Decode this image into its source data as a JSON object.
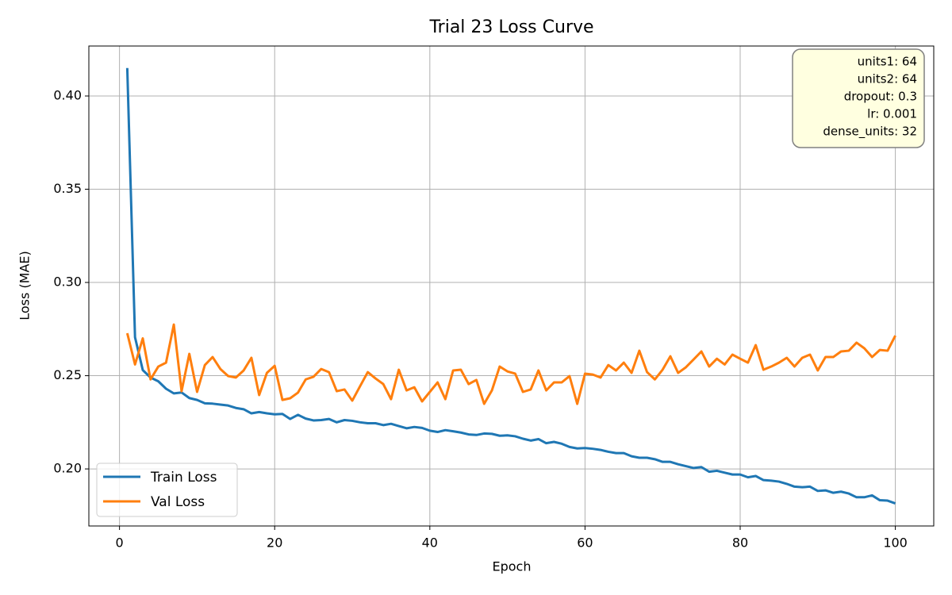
{
  "chart_data": {
    "type": "line",
    "title": "Trial 23 Loss Curve",
    "xlabel": "Epoch",
    "ylabel": "Loss (MAE)",
    "x": [
      1,
      2,
      3,
      4,
      5,
      6,
      7,
      8,
      9,
      10,
      11,
      12,
      13,
      14,
      15,
      16,
      17,
      18,
      19,
      20,
      21,
      22,
      23,
      24,
      25,
      26,
      27,
      28,
      29,
      30,
      31,
      32,
      33,
      34,
      35,
      36,
      37,
      38,
      39,
      40,
      41,
      42,
      43,
      44,
      45,
      46,
      47,
      48,
      49,
      50,
      51,
      52,
      53,
      54,
      55,
      56,
      57,
      58,
      59,
      60,
      61,
      62,
      63,
      64,
      65,
      66,
      67,
      68,
      69,
      70,
      71,
      72,
      73,
      74,
      75,
      76,
      77,
      78,
      79,
      80,
      81,
      82,
      83,
      84,
      85,
      86,
      87,
      88,
      89,
      90,
      91,
      92,
      93,
      94,
      95,
      96,
      97,
      98,
      99,
      100
    ],
    "series": [
      {
        "name": "Train Loss",
        "color": "#1f77b4",
        "values": [
          0.415,
          0.2706,
          0.253,
          0.249,
          0.247,
          0.243,
          0.2405,
          0.241,
          0.238,
          0.237,
          0.2352,
          0.235,
          0.2345,
          0.234,
          0.2327,
          0.232,
          0.2298,
          0.2305,
          0.2298,
          0.2293,
          0.2295,
          0.2268,
          0.229,
          0.227,
          0.226,
          0.2262,
          0.2268,
          0.225,
          0.2262,
          0.2258,
          0.225,
          0.2245,
          0.2245,
          0.2235,
          0.2242,
          0.223,
          0.2218,
          0.2225,
          0.222,
          0.2205,
          0.2198,
          0.2208,
          0.2202,
          0.2195,
          0.2185,
          0.2182,
          0.219,
          0.2188,
          0.2178,
          0.218,
          0.2175,
          0.2162,
          0.2152,
          0.216,
          0.2138,
          0.2145,
          0.2135,
          0.2118,
          0.211,
          0.2112,
          0.2108,
          0.2102,
          0.2092,
          0.2085,
          0.2085,
          0.2068,
          0.206,
          0.206,
          0.2052,
          0.2038,
          0.2038,
          0.2025,
          0.2015,
          0.2005,
          0.201,
          0.1985,
          0.199,
          0.198,
          0.197,
          0.197,
          0.1955,
          0.1962,
          0.194,
          0.1937,
          0.1932,
          0.192,
          0.1905,
          0.1902,
          0.1905,
          0.1882,
          0.1885,
          0.1872,
          0.1878,
          0.1868,
          0.1848,
          0.1848,
          0.1858,
          0.1832,
          0.183,
          0.1815
        ]
      },
      {
        "name": "Val Loss",
        "color": "#ff7f0e",
        "values": [
          0.2728,
          0.256,
          0.27,
          0.248,
          0.2549,
          0.257,
          0.2774,
          0.2417,
          0.2617,
          0.2413,
          0.2557,
          0.26,
          0.2536,
          0.2498,
          0.249,
          0.2528,
          0.2596,
          0.2396,
          0.2515,
          0.2553,
          0.237,
          0.2379,
          0.2409,
          0.248,
          0.2494,
          0.2536,
          0.2519,
          0.2417,
          0.2426,
          0.2366,
          0.2443,
          0.2519,
          0.2485,
          0.2455,
          0.2374,
          0.2532,
          0.2421,
          0.2438,
          0.2362,
          0.2413,
          0.2464,
          0.2374,
          0.2528,
          0.2532,
          0.2455,
          0.2477,
          0.2349,
          0.2421,
          0.2549,
          0.2523,
          0.2511,
          0.2413,
          0.2426,
          0.2528,
          0.2421,
          0.2464,
          0.2464,
          0.2498,
          0.2349,
          0.2511,
          0.2506,
          0.249,
          0.2557,
          0.2528,
          0.257,
          0.2515,
          0.2634,
          0.2519,
          0.248,
          0.2532,
          0.2604,
          0.2515,
          0.2545,
          0.2587,
          0.263,
          0.2549,
          0.2591,
          0.256,
          0.2613,
          0.2591,
          0.257,
          0.2664,
          0.2532,
          0.2549,
          0.257,
          0.2596,
          0.2549,
          0.2596,
          0.2613,
          0.2528,
          0.26,
          0.26,
          0.263,
          0.2634,
          0.2677,
          0.2647,
          0.26,
          0.2638,
          0.2634,
          0.2715
        ]
      }
    ],
    "xlim": [
      -3.95,
      104.95
    ],
    "ylim": [
      0.1694,
      0.4268
    ],
    "xticks": [
      0,
      20,
      40,
      60,
      80,
      100
    ],
    "yticks": [
      {
        "value": 0.2,
        "label": "0.20"
      },
      0.25,
      {
        "value": 0.3,
        "label": "0.30"
      },
      0.35,
      {
        "value": 0.4,
        "label": "0.40"
      }
    ],
    "grid": true,
    "legend": "lower left",
    "annotation": [
      "units1: 64",
      "units2: 64",
      "dropout: 0.3",
      "lr: 0.001",
      "dense_units: 32"
    ]
  }
}
